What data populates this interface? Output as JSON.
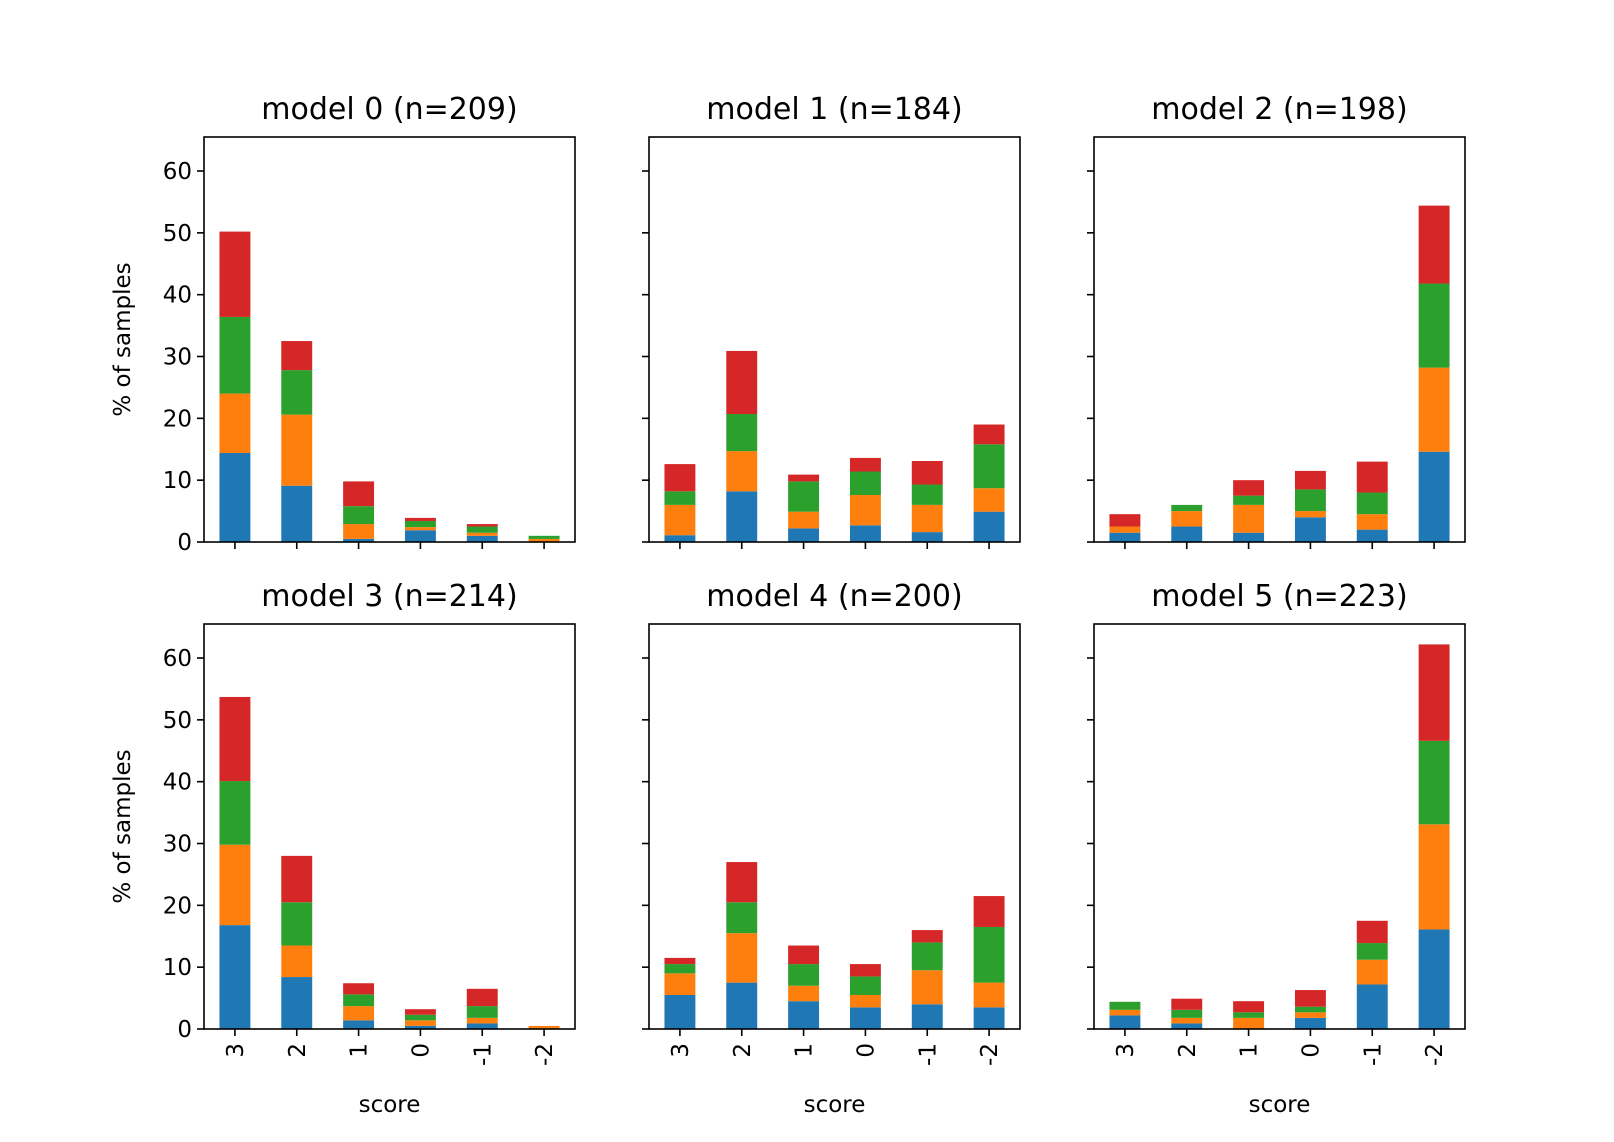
{
  "figure": {
    "ylabel": "% of samples",
    "xlabel": "score"
  },
  "chart_data": {
    "type": "bar",
    "stacked": true,
    "categories": [
      "3",
      "2",
      "1",
      "0",
      "-1",
      "-2"
    ],
    "yticks": [
      0,
      10,
      20,
      30,
      40,
      50,
      60
    ],
    "ylim": [
      0,
      65.5
    ],
    "grid": false,
    "legend": "none",
    "series_colors": [
      "#1f77b4",
      "#ff7f0e",
      "#2ca02c",
      "#d62728"
    ],
    "panels": [
      {
        "title": "model 0 (n=209)",
        "segments": [
          [
            14.4,
            9.6,
            12.4,
            13.8
          ],
          [
            9.1,
            11.5,
            7.2,
            4.7
          ],
          [
            0.5,
            2.4,
            2.9,
            4.0
          ],
          [
            1.9,
            0.5,
            1.0,
            0.5
          ],
          [
            1.0,
            0.5,
            1.0,
            0.4
          ],
          [
            0.0,
            0.5,
            0.5,
            0.0
          ]
        ]
      },
      {
        "title": "model 1 (n=184)",
        "segments": [
          [
            1.1,
            4.9,
            2.2,
            4.4
          ],
          [
            8.2,
            6.5,
            6.0,
            10.2
          ],
          [
            2.2,
            2.7,
            4.9,
            1.1
          ],
          [
            2.7,
            4.9,
            3.8,
            2.2
          ],
          [
            1.6,
            4.4,
            3.3,
            3.8
          ],
          [
            4.9,
            3.8,
            7.1,
            3.2
          ]
        ]
      },
      {
        "title": "model 2 (n=198)",
        "segments": [
          [
            1.5,
            1.0,
            0.0,
            2.0
          ],
          [
            2.5,
            2.5,
            1.0,
            0.0
          ],
          [
            1.5,
            4.5,
            1.5,
            2.5
          ],
          [
            4.0,
            1.0,
            3.5,
            3.0
          ],
          [
            2.0,
            2.5,
            3.5,
            5.0
          ],
          [
            14.6,
            13.6,
            13.6,
            12.6
          ]
        ]
      },
      {
        "title": "model 3 (n=214)",
        "segments": [
          [
            16.8,
            13.0,
            10.3,
            13.6
          ],
          [
            8.4,
            5.1,
            7.0,
            7.5
          ],
          [
            1.4,
            2.3,
            1.9,
            1.8
          ],
          [
            0.5,
            0.9,
            0.9,
            0.9
          ],
          [
            0.9,
            0.9,
            1.9,
            2.8
          ],
          [
            0.0,
            0.5,
            0.0,
            0.0
          ]
        ]
      },
      {
        "title": "model 4 (n=200)",
        "segments": [
          [
            5.5,
            3.5,
            1.5,
            1.0
          ],
          [
            7.5,
            8.0,
            5.0,
            6.5
          ],
          [
            4.5,
            2.5,
            3.5,
            3.0
          ],
          [
            3.5,
            2.0,
            3.0,
            2.0
          ],
          [
            4.0,
            5.5,
            4.5,
            2.0
          ],
          [
            3.5,
            4.0,
            9.0,
            5.0
          ]
        ]
      },
      {
        "title": "model 5 (n=223)",
        "segments": [
          [
            2.2,
            0.9,
            1.3,
            0.0
          ],
          [
            0.9,
            0.9,
            1.3,
            1.8
          ],
          [
            0.0,
            1.8,
            0.9,
            1.8
          ],
          [
            1.8,
            0.9,
            0.9,
            2.7
          ],
          [
            7.2,
            4.0,
            2.7,
            3.6
          ],
          [
            16.1,
            17.0,
            13.5,
            15.6
          ]
        ]
      }
    ]
  }
}
